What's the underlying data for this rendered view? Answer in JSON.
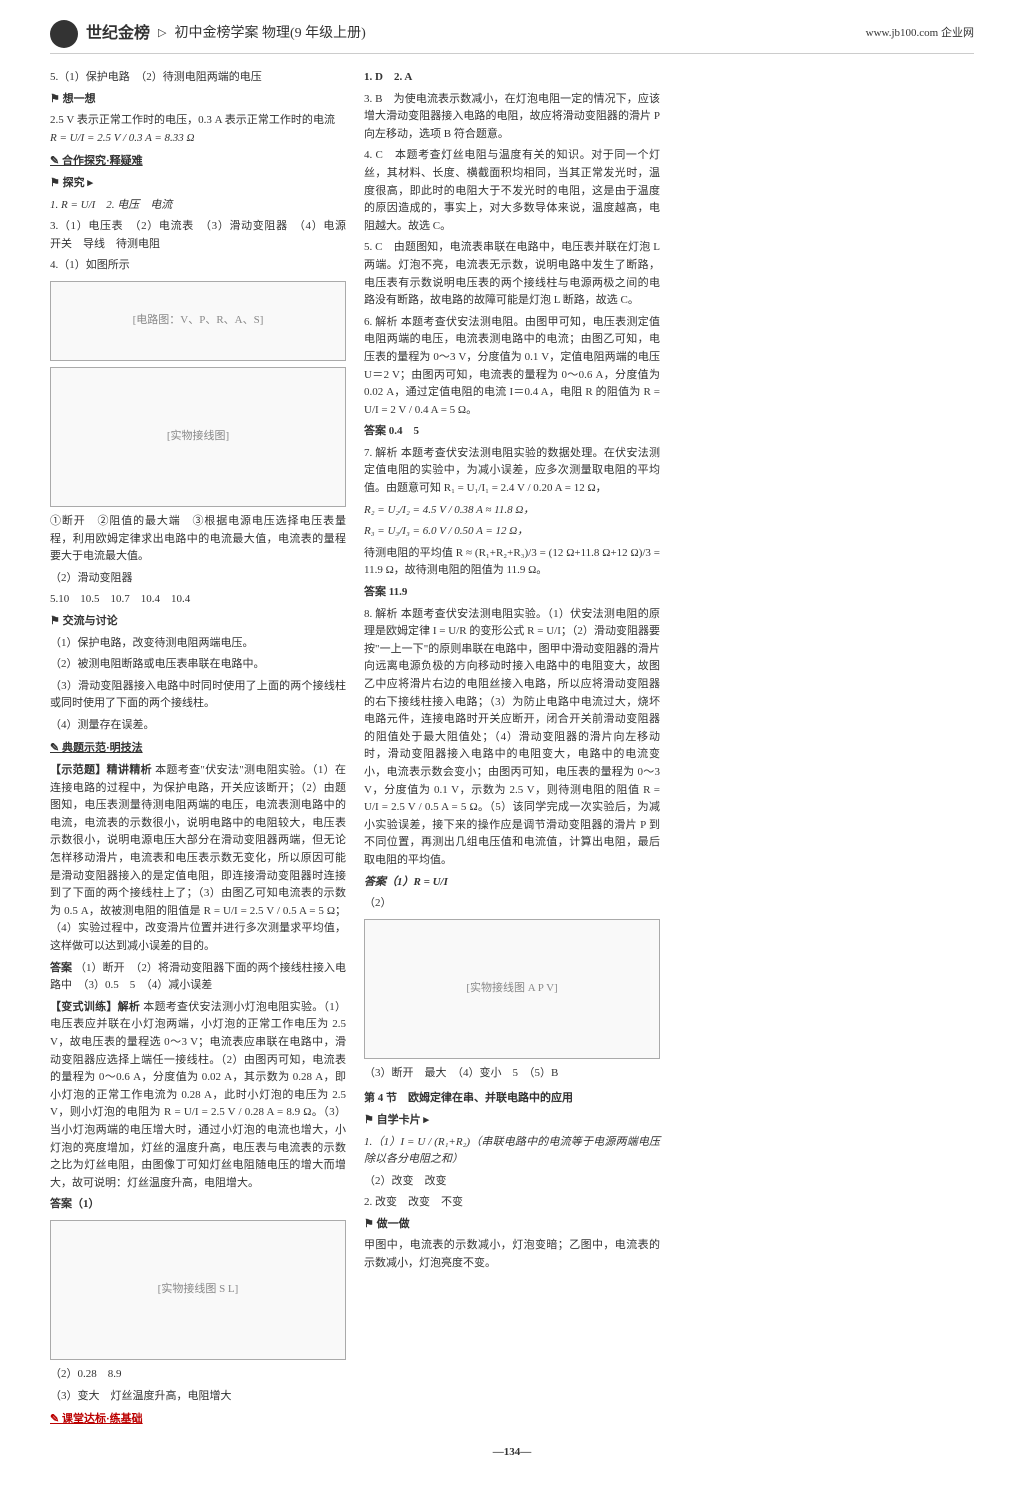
{
  "header": {
    "brand": "世纪金榜",
    "title": "初中金榜学案 物理(9 年级上册)",
    "url": "www.jb100.com 企业网"
  },
  "page_number": "—134—",
  "col1": {
    "p1": "5.（1）保护电路　（2）待测电阻两端的电压",
    "think": "想一想",
    "p2_a": "2.5 V 表示正常工作时的电压，0.3 A 表示正常工作时的电流　",
    "p2_b": "R = U/I = 2.5 V / 0.3 A = 8.33 Ω",
    "sec_hezuo": "✎ 合作探究·释疑难",
    "tanjiu": "探究 ▸",
    "t1": "1. R = U/I　2. 电压　电流",
    "t3": "3.（1）电压表　（2）电流表　（3）滑动变阻器　（4）电源　开关　导线　待测电阻",
    "t4": "4.（1）如图所示",
    "diagram1_label": "[电路图：V、P、R、A、S]",
    "diagram2_label": "[实物接线图]",
    "t4b": "①断开　②阻值的最大端　③根据电源电压选择电压表量程，利用欧姆定律求出电路中的电流最大值，电流表的量程要大于电流最大值。",
    "t4c": "（2）滑动变阻器",
    "t5": "5.10　10.5　10.7　10.4　10.4",
    "jiaoliu": "交流与讨论",
    "j1": "（1）保护电路，改变待测电阻两端电压。",
    "j2": "（2）被测电阻断路或电压表串联在电路中。",
    "j3": "（3）滑动变阻器接入电路中时同时使用了上面的两个接线柱或同时使用了下面的两个接线柱。",
    "j4": "（4）测量存在误差。",
    "sec_dianli": "✎ 典题示范·明技法",
    "dl_label": "【示范题】精讲精析",
    "dl_body": "本题考查\"伏安法\"测电阻实验。（1）在连接电路的过程中，为保护电路，开关应该断开；（2）由题图知，电压表测量待测电阻两端的电压，电流表测电路中的电流，电流表的示数很小，说明电路中的电阻较大，电压表示数很小，说明电源电压大部分在滑动变阻器两端，但无论怎样移动滑片，电流表和电压表示数无变化，所以原因可能是滑动变阻器接入的是定值电阻，即连接滑动变阻器时连接到了下面的两个接线柱上了；（3）由图乙可知电流表的示数为 0.5 A，故被测电阻的阻值是 R = U/I = 2.5 V / 0.5 A = 5 Ω；（4）实验过程中，改变滑片位置并进行多次测量求平均值，这样做可以达到减小误差的目的。"
  },
  "col2": {
    "ans1_label": "答案",
    "ans1": "（1）断开　（2）将滑动变阻器下面的两个接线柱接入电路中　（3）0.5　5　（4）减小误差",
    "bx_label": "【变式训练】解析",
    "bx": "本题考查伏安法测小灯泡电阻实验。（1）电压表应并联在小灯泡两端，小灯泡的正常工作电压为 2.5 V，故电压表的量程选 0～3 V；电流表应串联在电路中，滑动变阻器应选择上端任一接线柱。（2）由图丙可知，电流表的量程为 0～0.6 A，分度值为 0.02 A，其示数为 0.28 A，即小灯泡的正常工作电流为 0.28 A，此时小灯泡的电压为 2.5 V，则小灯泡的电阻为 R = U/I = 2.5 V / 0.28 A = 8.9 Ω。（3）当小灯泡两端的电压增大时，通过小灯泡的电流也增大，小灯泡的亮度增加，灯丝的温度升高，电压表与电流表的示数之比为灯丝电阻，由图像丁可知灯丝电阻随电压的增大而增大，故可说明：灯丝温度升高，电阻增大。",
    "ans2": "答案（1）",
    "diagram3_label": "[实物接线图 S L]",
    "bx2": "（2）0.28　8.9",
    "bx3": "（3）变大　灯丝温度升高，电阻增大",
    "sec_ketang": "✎ 课堂达标·练基础",
    "k1": "1. D　2. A",
    "k3": "3. B　为使电流表示数减小，在灯泡电阻一定的情况下，应该增大滑动变阻器接入电路的电阻，故应将滑动变阻器的滑片 P 向左移动，选项 B 符合题意。",
    "k4": "4. C　本题考查灯丝电阻与温度有关的知识。对于同一个灯丝，其材料、长度、横截面积均相同，当其正常发光时，温度很高，即此时的电阻大于不发光时的电阻，这是由于温度的原因造成的，事实上，对大多数导体来说，温度越高，电阻越大。故选 C。",
    "k5": "5. C　由题图知，电流表串联在电路中，电压表并联在灯泡 L 两端。灯泡不亮，电流表无示数，说明电路中发生了断路，电压表有示数说明电压表的两个接线柱与电源两极之间的电路没有断路，故电路的故障可能是灯泡 L 断路，故选 C。",
    "k6": "6. 解析 本题考查伏安法测电阻。由图甲可知，电压表测定值电阻两端的电压，电流表测电路中的电流；由图乙可知，电压表的量程为 0～3 V，分度值为 0.1 V，定值电阻两端的电压 U＝2 V；由图丙可知，电流表的量程为 0～0.6 A，分度值为 0.02 A，通过定值电阻的电流 I＝0.4 A，电阻 R 的阻值为 R = U/I = 2 V / 0.4 A = 5 Ω。",
    "ans6": "答案 0.4　5"
  },
  "col3": {
    "k7": "7. 解析 本题考查伏安法测电阻实验的数据处理。在伏安法测定值电阻的实验中，为减小误差，应多次测量取电阻的平均值。由题意可知 R₁ = U₁/I₁ = 2.4 V / 0.20 A = 12 Ω，",
    "k7b": "R₂ = U₂/I₂ = 4.5 V / 0.38 A ≈ 11.8 Ω，",
    "k7c": "R₃ = U₃/I₃ = 6.0 V / 0.50 A = 12 Ω，",
    "k7d": "待测电阻的平均值 R ≈ (R₁+R₂+R₃)/3 = (12 Ω+11.8 Ω+12 Ω)/3 = 11.9 Ω，故待测电阻的阻值为 11.9 Ω。",
    "ans7": "答案 11.9",
    "k8": "8. 解析 本题考查伏安法测电阻实验。（1）伏安法测电阻的原理是欧姆定律 I = U/R 的变形公式 R = U/I；（2）滑动变阻器要按\"一上一下\"的原则串联在电路中，图甲中滑动变阻器的滑片向远离电源负极的方向移动时接入电路中的电阻变大，故图乙中应将滑片右边的电阻丝接入电路，所以应将滑动变阻器的右下接线柱接入电路；（3）为防止电路中电流过大，烧坏电路元件，连接电路时开关应断开，闭合开关前滑动变阻器的阻值处于最大阻值处；（4）滑动变阻器的滑片向左移动时，滑动变阻器接入电路中的电阻变大，电路中的电流变小，电流表示数会变小；由图丙可知，电压表的量程为 0～3 V，分度值为 0.1 V，示数为 2.5 V，则待测电阻的阻值 R = U/I = 2.5 V / 0.5 A = 5 Ω。（5）该同学完成一次实验后，为减小实验误差，接下来的操作应是调节滑动变阻器的滑片 P 到不同位置，再测出几组电压值和电流值，计算出电阻，最后取电阻的平均值。",
    "ans8a": "答案（1）R = U/I",
    "ans8b": "（2）",
    "diagram4_label": "[实物接线图 A P V]",
    "ans8c": "（3）断开　最大　（4）变小　5　（5）B",
    "node4": "第 4 节　欧姆定律在串、并联电路中的应用",
    "zixue": "自学卡片 ▸",
    "z1": "1.（1）I = U / (R₁+R₂)（串联电路中的电流等于电源两端电压除以各分电阻之和）",
    "z2": "（2）改变　改变",
    "z3": "2. 改变　改变　不变",
    "zuo": "做一做",
    "zuo1": "甲图中，电流表的示数减小，灯泡变暗；乙图中，电流表的示数减小，灯泡亮度不变。"
  }
}
